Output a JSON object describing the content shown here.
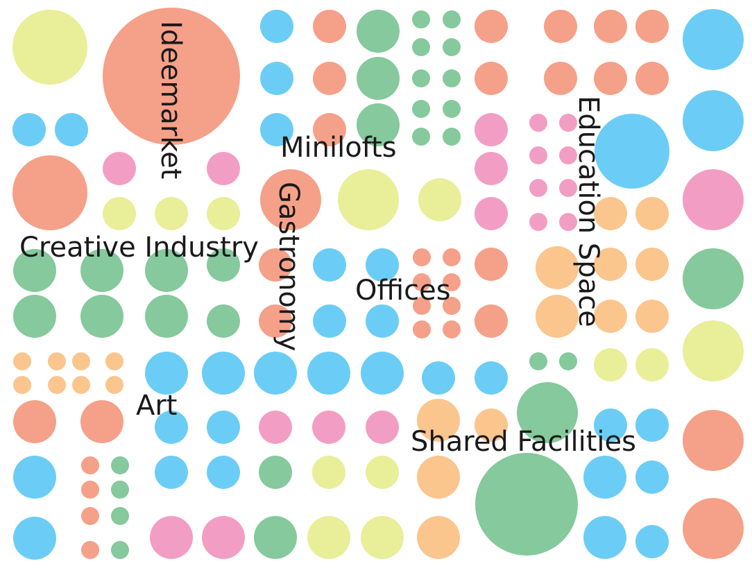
{
  "palette": {
    "salmon": "#f5a088",
    "green": "#85c99c",
    "blue": "#6bcdf5",
    "yellow": "#e9ee99",
    "pink": "#f29ec4",
    "orange": "#fbc58e"
  },
  "labels": {
    "ideemarket": "Ideemarket",
    "minilofts": "Minilofts",
    "education_space": "Education Space",
    "creative_industry": "Creative Industry",
    "gastronomy": "Gastronomy",
    "offices": "Offices",
    "art": "Art",
    "shared_facilities": "Shared Facilities"
  }
}
